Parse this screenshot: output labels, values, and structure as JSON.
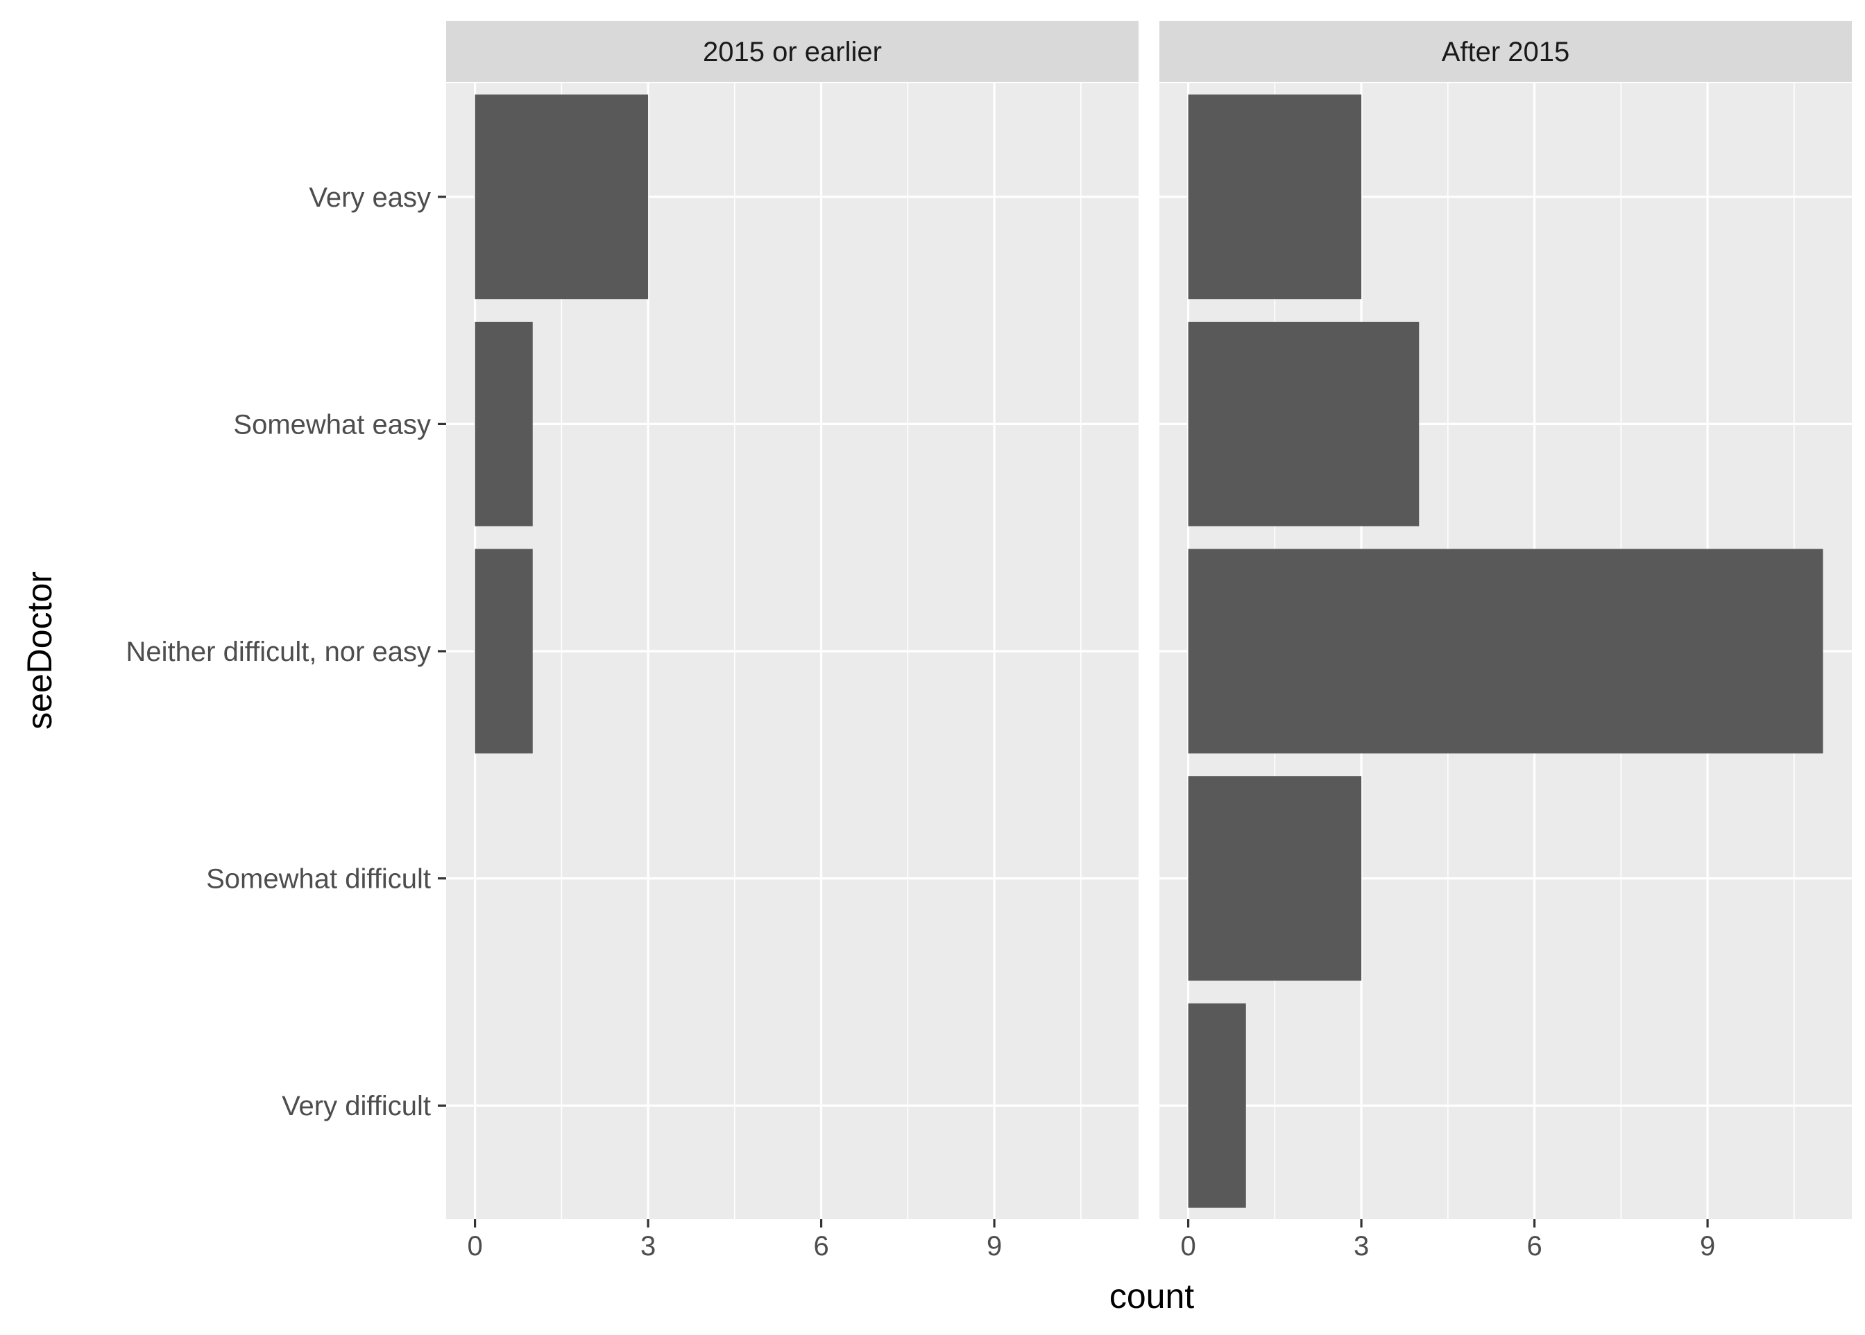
{
  "chart_data": {
    "type": "bar",
    "orientation": "horizontal",
    "faceted": true,
    "xlabel": "count",
    "ylabel": "seeDoctor",
    "xlim": [
      0,
      11
    ],
    "xticks": [
      0,
      3,
      6,
      9
    ],
    "categories": [
      "Very easy",
      "Somewhat easy",
      "Neither difficult, nor easy",
      "Somewhat difficult",
      "Very difficult"
    ],
    "grid": true,
    "legend": "none",
    "bar_color": "#595959",
    "panel_color": "#ebebeb",
    "strip_color": "#d9d9d9",
    "panels": [
      {
        "label": "2015 or earlier",
        "values": [
          3,
          1,
          1,
          0,
          0
        ]
      },
      {
        "label": "After 2015",
        "values": [
          3,
          4,
          11,
          3,
          1
        ]
      }
    ]
  }
}
